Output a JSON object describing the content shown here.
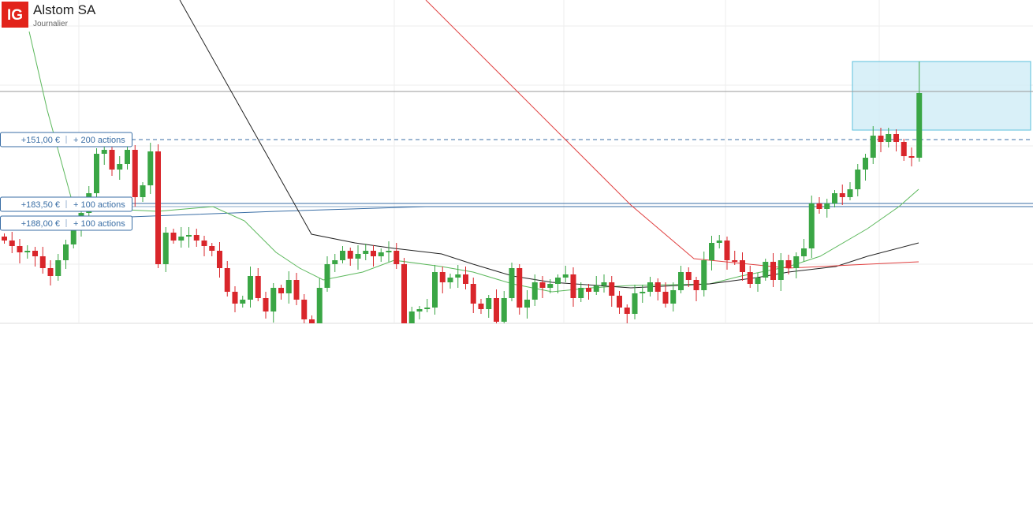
{
  "header": {
    "logo": "IG",
    "title": "Alstom SA",
    "subtitle": "Journalier"
  },
  "orders": [
    {
      "price": "+151,00 €",
      "quantity": "+ 200 actions"
    },
    {
      "price": "+183,50 €",
      "quantity": "+ 100 actions"
    },
    {
      "price": "+188,00 €",
      "quantity": "+ 100 actions"
    }
  ]
}
